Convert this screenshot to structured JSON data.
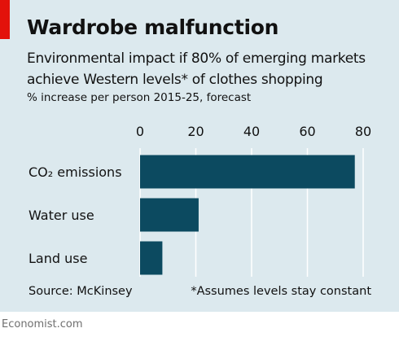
{
  "header": {
    "title": "Wardrobe malfunction",
    "subtitle_line1": "Environmental impact if 80% of emerging markets",
    "subtitle_line2": "achieve Western levels* of clothes shopping",
    "unit": "% increase per person 2015-25, forecast"
  },
  "footer": {
    "source": "Source: McKinsey",
    "footnote": "*Assumes levels stay constant",
    "brand": "Economist.com"
  },
  "colors": {
    "background": "#dce9ee",
    "bar": "#0c4a60",
    "gridline": "#ffffff",
    "accent": "#e3120b"
  },
  "chart_data": {
    "type": "bar",
    "orientation": "horizontal",
    "categories": [
      "CO₂ emissions",
      "Water use",
      "Land use"
    ],
    "values": [
      77,
      21,
      8
    ],
    "xlim": [
      0,
      80
    ],
    "xticks": [
      0,
      20,
      40,
      60,
      80
    ],
    "grid": true,
    "title": "Wardrobe malfunction",
    "xlabel": "",
    "ylabel": ""
  }
}
